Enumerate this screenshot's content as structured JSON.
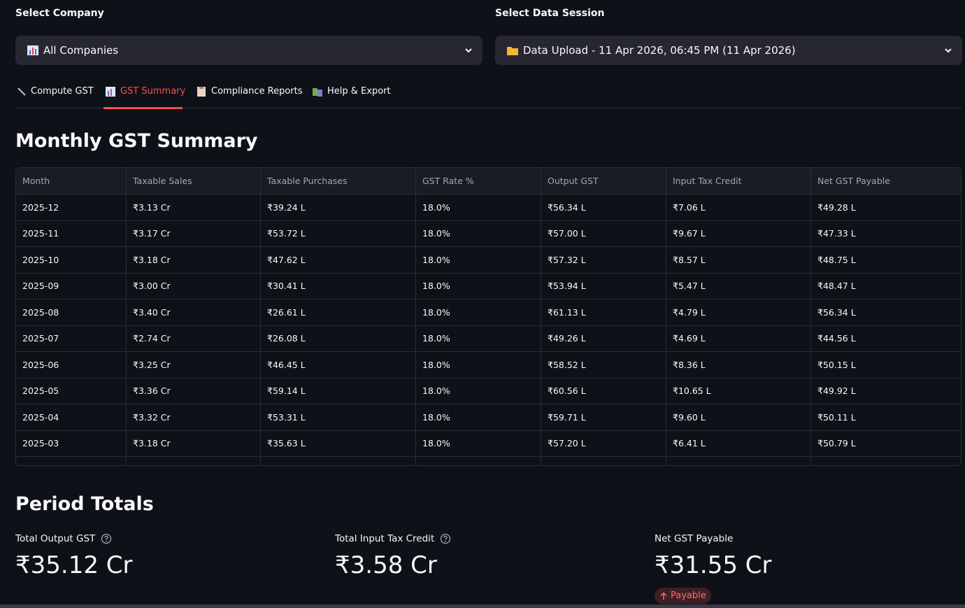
{
  "selectors": [
    {
      "label": "Select Company",
      "value": "All Companies"
    },
    {
      "label": "Select Data Session",
      "value": "Data Upload - 11 Apr 2026, 06:45 PM (11 Apr 2026)"
    }
  ],
  "tabs": [
    "Compute GST",
    "GST Summary",
    "Compliance Reports",
    "Help & Export"
  ],
  "summary": {
    "title": "Monthly GST Summary",
    "table": {
      "columns": [
        "Month",
        "Taxable Sales",
        "Taxable Purchases",
        "GST Rate %",
        "Output GST",
        "Input Tax Credit",
        "Net GST Payable"
      ],
      "rows": [
        [
          "2025-12",
          "₹3.13 Cr",
          "₹39.24 L",
          "18.0%",
          "₹56.34 L",
          "₹7.06 L",
          "₹49.28 L"
        ],
        [
          "2025-11",
          "₹3.17 Cr",
          "₹53.72 L",
          "18.0%",
          "₹57.00 L",
          "₹9.67 L",
          "₹47.33 L"
        ],
        [
          "2025-10",
          "₹3.18 Cr",
          "₹47.62 L",
          "18.0%",
          "₹57.32 L",
          "₹8.57 L",
          "₹48.75 L"
        ],
        [
          "2025-09",
          "₹3.00 Cr",
          "₹30.41 L",
          "18.0%",
          "₹53.94 L",
          "₹5.47 L",
          "₹48.47 L"
        ],
        [
          "2025-08",
          "₹3.40 Cr",
          "₹26.61 L",
          "18.0%",
          "₹61.13 L",
          "₹4.79 L",
          "₹56.34 L"
        ],
        [
          "2025-07",
          "₹2.74 Cr",
          "₹26.08 L",
          "18.0%",
          "₹49.26 L",
          "₹4.69 L",
          "₹44.56 L"
        ],
        [
          "2025-06",
          "₹3.25 Cr",
          "₹46.45 L",
          "18.0%",
          "₹58.52 L",
          "₹8.36 L",
          "₹50.15 L"
        ],
        [
          "2025-05",
          "₹3.36 Cr",
          "₹59.14 L",
          "18.0%",
          "₹60.56 L",
          "₹10.65 L",
          "₹49.92 L"
        ],
        [
          "2025-04",
          "₹3.32 Cr",
          "₹53.31 L",
          "18.0%",
          "₹59.71 L",
          "₹9.60 L",
          "₹50.11 L"
        ],
        [
          "2025-03",
          "₹3.18 Cr",
          "₹35.63 L",
          "18.0%",
          "₹57.20 L",
          "₹6.41 L",
          "₹50.79 L"
        ]
      ]
    }
  },
  "totals": {
    "title": "Period Totals",
    "metrics": [
      {
        "label": "Total Output GST",
        "value": "₹35.12 Cr"
      },
      {
        "label": "Total Input Tax Credit",
        "value": "₹3.58 Cr"
      },
      {
        "label": "Net GST Payable",
        "value": "₹31.55 Cr",
        "delta": "Payable"
      }
    ]
  }
}
